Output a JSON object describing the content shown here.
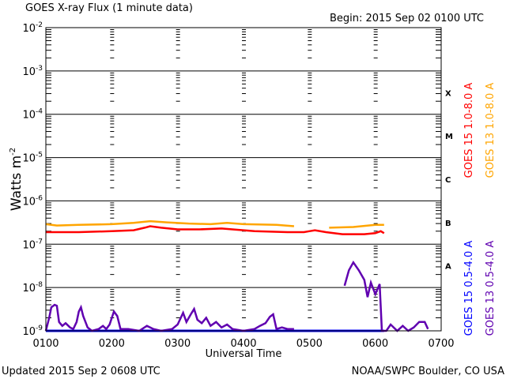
{
  "chart_data": {
    "type": "line",
    "title": "GOES X-ray Flux (1 minute data)",
    "subtitle": "Begin: 2015 Sep 02 0100 UTC",
    "xlabel": "Universal Time",
    "ylabel": "Watts m",
    "ylabel_sup": "-2",
    "x_units": "minutes since 0100 UTC",
    "xlim": [
      0,
      360
    ],
    "ylim": [
      1e-09,
      0.01
    ],
    "yscale": "log",
    "x_ticks": [
      0,
      60,
      120,
      180,
      240,
      300,
      360
    ],
    "x_tick_labels": [
      "0100",
      "0200",
      "0300",
      "0400",
      "0500",
      "0600",
      "0700"
    ],
    "y_tick_exponents": [
      -2,
      -3,
      -4,
      -5,
      -6,
      -7,
      -8,
      -9
    ],
    "grid": "horizontal at decades",
    "flare_classes": [
      {
        "label": "X",
        "from": 0.0001,
        "to": 0.001
      },
      {
        "label": "M",
        "from": 1e-05,
        "to": 0.0001
      },
      {
        "label": "C",
        "from": 1e-06,
        "to": 1e-05
      },
      {
        "label": "B",
        "from": 1e-07,
        "to": 1e-06
      },
      {
        "label": "A",
        "from": 1e-08,
        "to": 1e-07
      }
    ],
    "series": [
      {
        "name": "GOES 15 1.0-8.0 A",
        "color": "#ff0000",
        "points": [
          [
            0,
            1.9e-07
          ],
          [
            30,
            1.9e-07
          ],
          [
            60,
            2e-07
          ],
          [
            80,
            2.1e-07
          ],
          [
            90,
            2.4e-07
          ],
          [
            95,
            2.6e-07
          ],
          [
            105,
            2.4e-07
          ],
          [
            120,
            2.2e-07
          ],
          [
            140,
            2.2e-07
          ],
          [
            160,
            2.3e-07
          ],
          [
            170,
            2.2e-07
          ],
          [
            190,
            2e-07
          ],
          [
            220,
            1.9e-07
          ],
          [
            235,
            1.9e-07
          ],
          [
            240,
            2e-07
          ],
          [
            245,
            2.1e-07
          ],
          [
            255,
            1.9e-07
          ],
          [
            270,
            1.7e-07
          ],
          [
            290,
            1.7e-07
          ],
          [
            300,
            1.8e-07
          ],
          [
            305,
            2e-07
          ],
          [
            308,
            1.8e-07
          ]
        ]
      },
      {
        "name": "GOES 13 1.0-8.0 A",
        "color": "#ffa500",
        "points": [
          [
            0,
            2.9e-07
          ],
          [
            10,
            2.7e-07
          ],
          [
            30,
            2.8e-07
          ],
          [
            60,
            2.9e-07
          ],
          [
            80,
            3.1e-07
          ],
          [
            95,
            3.4e-07
          ],
          [
            110,
            3.2e-07
          ],
          [
            130,
            3e-07
          ],
          [
            150,
            2.9e-07
          ],
          [
            165,
            3.1e-07
          ],
          [
            180,
            2.9e-07
          ],
          [
            210,
            2.8e-07
          ],
          [
            226,
            2.6e-07
          ],
          [
            227,
            null
          ],
          [
            258,
            2.4e-07
          ],
          [
            280,
            2.5e-07
          ],
          [
            300,
            2.8e-07
          ],
          [
            308,
            2.8e-07
          ]
        ]
      },
      {
        "name": "GOES 15 0.5-4.0 A",
        "color": "#0000ff",
        "points": [
          [
            0,
            1e-09
          ],
          [
            308,
            1e-09
          ]
        ]
      },
      {
        "name": "GOES 13 0.5-4.0 A",
        "color": "#6000b0",
        "points": [
          [
            0,
            1e-09
          ],
          [
            3,
            2e-09
          ],
          [
            5,
            3.5e-09
          ],
          [
            8,
            4e-09
          ],
          [
            10,
            3.8e-09
          ],
          [
            12,
            1.6e-09
          ],
          [
            15,
            1.3e-09
          ],
          [
            18,
            1.5e-09
          ],
          [
            22,
            1.2e-09
          ],
          [
            25,
            1.1e-09
          ],
          [
            28,
            1.6e-09
          ],
          [
            30,
            2.8e-09
          ],
          [
            32,
            3.5e-09
          ],
          [
            34,
            2.2e-09
          ],
          [
            38,
            1.2e-09
          ],
          [
            42,
            1e-09
          ],
          [
            48,
            1.1e-09
          ],
          [
            52,
            1.3e-09
          ],
          [
            55,
            1.1e-09
          ],
          [
            58,
            1.4e-09
          ],
          [
            62,
            2.8e-09
          ],
          [
            65,
            2.2e-09
          ],
          [
            68,
            1.1e-09
          ],
          [
            75,
            1.1e-09
          ],
          [
            85,
            1e-09
          ],
          [
            92,
            1.3e-09
          ],
          [
            98,
            1.1e-09
          ],
          [
            105,
            1e-09
          ],
          [
            115,
            1.1e-09
          ],
          [
            120,
            1.4e-09
          ],
          [
            125,
            2.6e-09
          ],
          [
            128,
            1.6e-09
          ],
          [
            132,
            2.4e-09
          ],
          [
            135,
            3.2e-09
          ],
          [
            138,
            1.8e-09
          ],
          [
            142,
            1.5e-09
          ],
          [
            146,
            2e-09
          ],
          [
            150,
            1.3e-09
          ],
          [
            155,
            1.6e-09
          ],
          [
            160,
            1.2e-09
          ],
          [
            165,
            1.4e-09
          ],
          [
            170,
            1.1e-09
          ],
          [
            180,
            1e-09
          ],
          [
            190,
            1.1e-09
          ],
          [
            195,
            1.3e-09
          ],
          [
            200,
            1.5e-09
          ],
          [
            204,
            2.1e-09
          ],
          [
            207,
            2.4e-09
          ],
          [
            210,
            1.1e-09
          ],
          [
            215,
            1.2e-09
          ],
          [
            220,
            1.1e-09
          ],
          [
            226,
            1.1e-09
          ],
          [
            227,
            null
          ],
          [
            272,
            1.1e-08
          ],
          [
            276,
            2.5e-08
          ],
          [
            280,
            3.8e-08
          ],
          [
            285,
            2.5e-08
          ],
          [
            290,
            1.5e-08
          ],
          [
            293,
            6e-09
          ],
          [
            296,
            1.3e-08
          ],
          [
            300,
            7e-09
          ],
          [
            304,
            1.2e-08
          ],
          [
            306,
            1e-09
          ],
          [
            310,
            1e-09
          ],
          [
            314,
            1.4e-09
          ],
          [
            320,
            1e-09
          ],
          [
            325,
            1.3e-09
          ],
          [
            330,
            1e-09
          ],
          [
            335,
            1.2e-09
          ],
          [
            340,
            1.6e-09
          ],
          [
            345,
            1.6e-09
          ],
          [
            348,
            1.1e-09
          ]
        ]
      }
    ]
  },
  "footer": {
    "updated": "Updated 2015 Sep  2 0608 UTC",
    "credit": "NOAA/SWPC Boulder, CO USA"
  }
}
